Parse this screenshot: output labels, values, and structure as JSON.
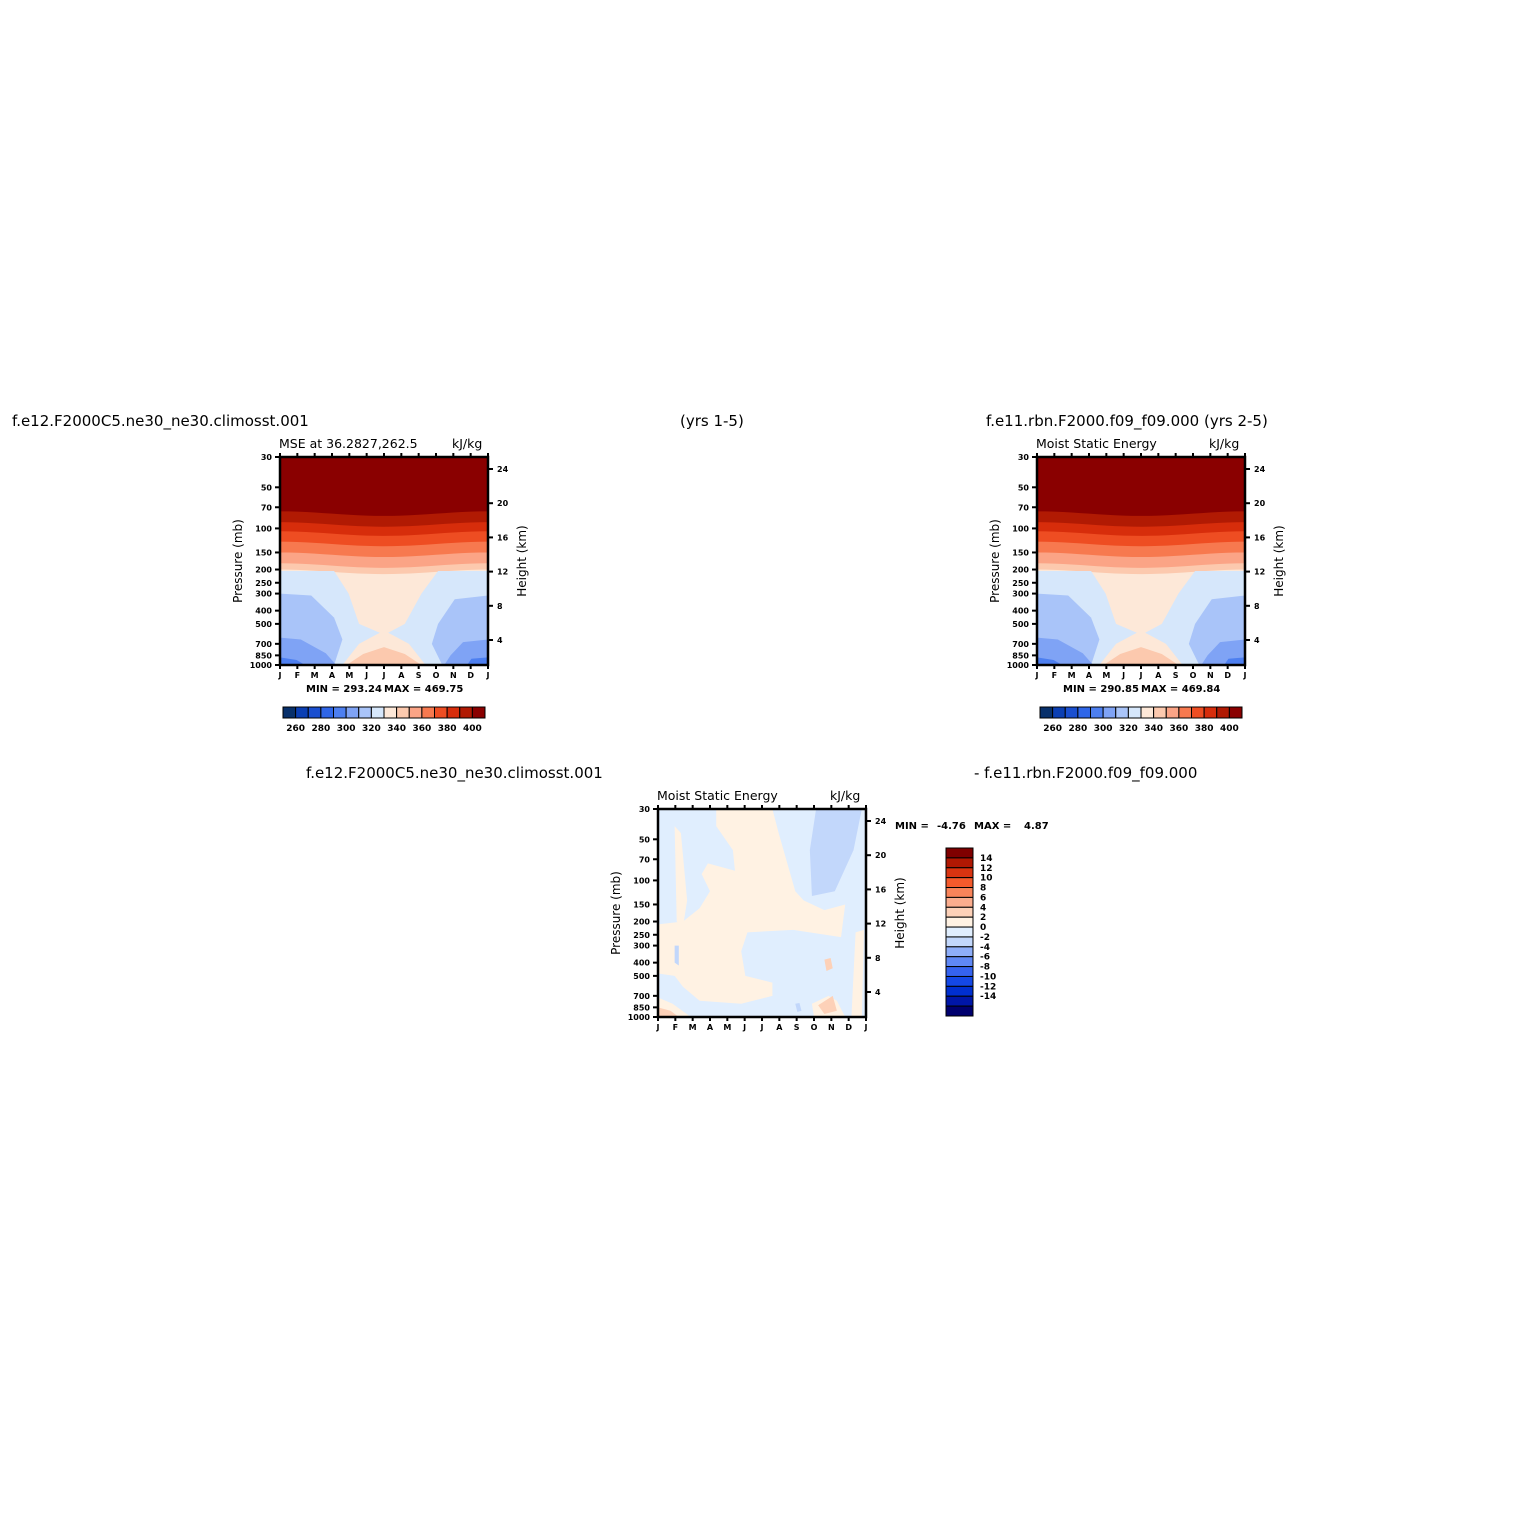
{
  "headers": {
    "left": "f.e12.F2000C5.ne30_ne30.climosst.001",
    "center": "(yrs 1-5)",
    "right": "f.e11.rbn.F2000.f09_f09.000 (yrs 2-5)",
    "diff_left": "f.e12.F2000C5.ne30_ne30.climosst.001",
    "diff_right": "- f.e11.rbn.F2000.f09_f09.000"
  },
  "colors": {
    "mse_levels": [
      "#08306b",
      "#0b3fb3",
      "#1a4fd0",
      "#2f66e8",
      "#4d7ff0",
      "#7fa3f5",
      "#a9c4f9",
      "#d6e7fb",
      "#fde8d8",
      "#fcc9ae",
      "#fba486",
      "#f7794f",
      "#ee4d22",
      "#d72d0b",
      "#b11a03",
      "#8a0000"
    ],
    "diff_levels": [
      "#00006e",
      "#0016a8",
      "#002fd0",
      "#1448e6",
      "#3563ef",
      "#5f88f5",
      "#8eaef9",
      "#c2d7fb",
      "#e0eefe",
      "#fff2e3",
      "#fdd1b8",
      "#fbad8e",
      "#f9845a",
      "#f45a2c",
      "#d93411",
      "#b01803",
      "#7f0000"
    ]
  },
  "chart_data": [
    {
      "type": "heatmap",
      "panel": "top-left",
      "title": "MSE at 36.2827,262.5",
      "units": "kJ/kg",
      "ylabel": "Pressure (mb)",
      "ylabel_right": "Height (km)",
      "x_ticks": [
        "J",
        "F",
        "M",
        "A",
        "M",
        "J",
        "J",
        "A",
        "S",
        "O",
        "N",
        "D",
        "J"
      ],
      "y_ticks": [
        "30",
        "50",
        "70",
        "100",
        "150",
        "200",
        "250",
        "300",
        "400",
        "500",
        "700",
        "850",
        "1000"
      ],
      "y_ticks_right": [
        "24",
        "20",
        "16",
        "12",
        "8",
        "4"
      ],
      "min_label": "MIN = 293.24",
      "max_label": "MAX = 469.75",
      "colorbar_ticks": [
        "260",
        "280",
        "300",
        "320",
        "340",
        "360",
        "380",
        "400"
      ],
      "colorbar_orientation": "horizontal",
      "field": {
        "low_level_min_kJkg": 293.24,
        "upper_max_kJkg": 469.75,
        "band_pressures_mb": {
          "level_400": 65,
          "level_390": 75,
          "level_380": 90,
          "level_370": 105,
          "level_360": 125,
          "level_350": 150,
          "level_340": 180,
          "level_330": 200
        }
      }
    },
    {
      "type": "heatmap",
      "panel": "top-right",
      "title": "Moist Static Energy",
      "units": "kJ/kg",
      "ylabel": "Pressure (mb)",
      "ylabel_right": "Height (km)",
      "x_ticks": [
        "J",
        "F",
        "M",
        "A",
        "M",
        "J",
        "J",
        "A",
        "S",
        "O",
        "N",
        "D",
        "J"
      ],
      "y_ticks": [
        "30",
        "50",
        "70",
        "100",
        "150",
        "200",
        "250",
        "300",
        "400",
        "500",
        "700",
        "850",
        "1000"
      ],
      "y_ticks_right": [
        "24",
        "20",
        "16",
        "12",
        "8",
        "4"
      ],
      "min_label": "MIN = 290.85",
      "max_label": "MAX = 469.84",
      "colorbar_ticks": [
        "260",
        "280",
        "300",
        "320",
        "340",
        "360",
        "380",
        "400"
      ],
      "colorbar_orientation": "horizontal",
      "field": {
        "low_level_min_kJkg": 290.85,
        "upper_max_kJkg": 469.84
      }
    },
    {
      "type": "heatmap",
      "panel": "bottom-difference",
      "title": "Moist Static Energy",
      "units": "kJ/kg",
      "ylabel": "Pressure (mb)",
      "ylabel_right": "Height (km)",
      "x_ticks": [
        "J",
        "F",
        "M",
        "A",
        "M",
        "J",
        "J",
        "A",
        "S",
        "O",
        "N",
        "D",
        "J"
      ],
      "y_ticks": [
        "30",
        "50",
        "70",
        "100",
        "150",
        "200",
        "250",
        "300",
        "400",
        "500",
        "700",
        "850",
        "1000"
      ],
      "y_ticks_right": [
        "24",
        "20",
        "16",
        "12",
        "8",
        "4"
      ],
      "min_text": "MIN =",
      "min_value": "-4.76",
      "max_text": "MAX =",
      "max_value": "4.87",
      "colorbar_ticks": [
        "14",
        "12",
        "10",
        "8",
        "6",
        "4",
        "2",
        "0",
        "-2",
        "-4",
        "-6",
        "-8",
        "-10",
        "-12",
        "-14"
      ],
      "colorbar_orientation": "vertical",
      "field": {
        "min_kJkg": -4.76,
        "max_kJkg": 4.87
      }
    }
  ]
}
